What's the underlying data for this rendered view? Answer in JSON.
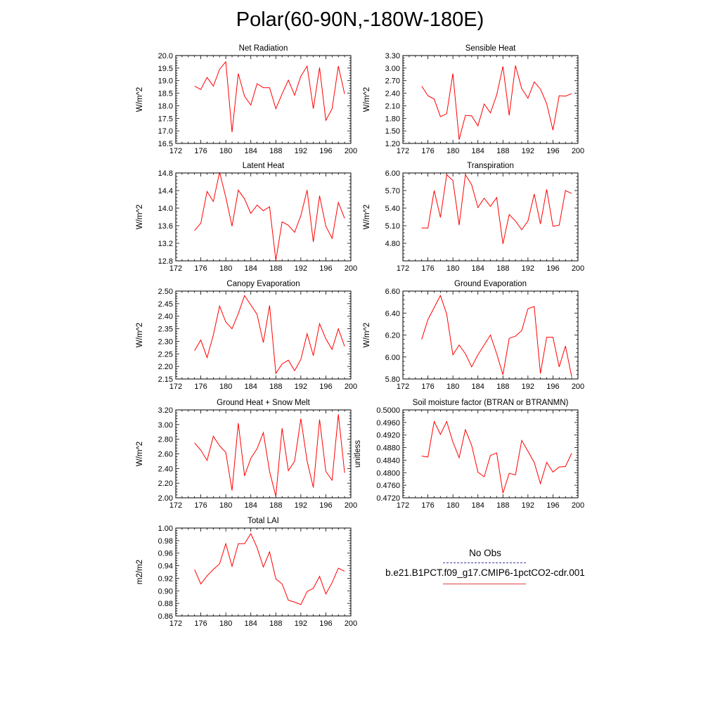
{
  "title": "Polar(60-90N,-180W-180E)",
  "legend": {
    "obs_label": "No Obs",
    "model_label": "b.e21.B1PCT.f09_g17.CMIP6-1pctCO2-cdr.001",
    "obs_color": "#3a3aa0",
    "model_color": "#ff0000"
  },
  "chart_data": [
    {
      "type": "line",
      "title": "Net Radiation",
      "ylabel": "W/m^2",
      "xlim": [
        172,
        200
      ],
      "xticks": [
        172,
        176,
        180,
        184,
        188,
        192,
        196,
        200
      ],
      "ylim": [
        16.5,
        20.0
      ],
      "yticks": [
        "16.5",
        "17.0",
        "17.5",
        "18.0",
        "18.5",
        "19.0",
        "19.5",
        "20.0"
      ],
      "x": [
        175,
        176,
        177,
        178,
        179,
        180,
        181,
        182,
        183,
        184,
        185,
        186,
        187,
        188,
        189,
        190,
        191,
        192,
        193,
        194,
        195,
        196,
        197,
        198,
        199
      ],
      "values": [
        18.78,
        18.65,
        19.13,
        18.78,
        19.45,
        19.75,
        16.95,
        19.28,
        18.38,
        18.03,
        18.88,
        18.72,
        18.72,
        17.88,
        18.47,
        19.02,
        18.42,
        19.18,
        19.58,
        17.88,
        19.52,
        17.42,
        17.88,
        19.58,
        18.47
      ]
    },
    {
      "type": "line",
      "title": "Sensible Heat",
      "ylabel": "W/m^2",
      "xlim": [
        172,
        200
      ],
      "xticks": [
        172,
        176,
        180,
        184,
        188,
        192,
        196,
        200
      ],
      "ylim": [
        1.2,
        3.3
      ],
      "yticks": [
        "1.20",
        "1.50",
        "1.80",
        "2.10",
        "2.40",
        "2.70",
        "3.00",
        "3.30"
      ],
      "x": [
        175,
        176,
        177,
        178,
        179,
        180,
        181,
        182,
        183,
        184,
        185,
        186,
        187,
        188,
        189,
        190,
        191,
        192,
        193,
        194,
        195,
        196,
        197,
        198,
        199
      ],
      "values": [
        2.57,
        2.34,
        2.26,
        1.84,
        1.91,
        2.87,
        1.29,
        1.87,
        1.86,
        1.62,
        2.14,
        1.93,
        2.36,
        3.04,
        1.87,
        3.06,
        2.51,
        2.28,
        2.67,
        2.5,
        2.15,
        1.52,
        2.34,
        2.33,
        2.39
      ]
    },
    {
      "type": "line",
      "title": "Latent Heat",
      "ylabel": "W/m^2",
      "xlim": [
        172,
        200
      ],
      "xticks": [
        172,
        176,
        180,
        184,
        188,
        192,
        196,
        200
      ],
      "ylim": [
        12.8,
        14.8
      ],
      "yticks": [
        "12.8",
        "13.2",
        "13.6",
        "14.0",
        "14.4",
        "14.8"
      ],
      "x": [
        175,
        176,
        177,
        178,
        179,
        180,
        181,
        182,
        183,
        184,
        185,
        186,
        187,
        188,
        189,
        190,
        191,
        192,
        193,
        194,
        195,
        196,
        197,
        198,
        199
      ],
      "values": [
        13.49,
        13.66,
        14.38,
        14.15,
        14.82,
        14.25,
        13.59,
        14.41,
        14.21,
        13.88,
        14.07,
        13.94,
        14.03,
        12.81,
        13.69,
        13.61,
        13.45,
        13.83,
        14.41,
        13.23,
        14.28,
        13.59,
        13.31,
        14.13,
        13.77
      ]
    },
    {
      "type": "line",
      "title": "Transpiration",
      "ylabel": "W/m^2",
      "xlim": [
        172,
        200
      ],
      "xticks": [
        172,
        176,
        180,
        184,
        188,
        192,
        196,
        200
      ],
      "ylim": [
        4.5,
        6.0
      ],
      "yticks": [
        "4.80",
        "5.10",
        "5.40",
        "5.70",
        "6.00"
      ],
      "x": [
        175,
        176,
        177,
        178,
        179,
        180,
        181,
        182,
        183,
        184,
        185,
        186,
        187,
        188,
        189,
        190,
        191,
        192,
        193,
        194,
        195,
        196,
        197,
        198,
        199
      ],
      "values": [
        5.06,
        5.06,
        5.7,
        5.24,
        5.97,
        5.87,
        5.11,
        5.97,
        5.8,
        5.41,
        5.57,
        5.43,
        5.58,
        4.79,
        5.29,
        5.18,
        5.03,
        5.18,
        5.64,
        5.13,
        5.72,
        5.09,
        5.11,
        5.7,
        5.65
      ]
    },
    {
      "type": "line",
      "title": "Canopy Evaporation",
      "ylabel": "W/m^2",
      "xlim": [
        172,
        200
      ],
      "xticks": [
        172,
        176,
        180,
        184,
        188,
        192,
        196,
        200
      ],
      "ylim": [
        2.15,
        2.5
      ],
      "yticks": [
        "2.15",
        "2.20",
        "2.25",
        "2.30",
        "2.35",
        "2.40",
        "2.45",
        "2.50"
      ],
      "x": [
        175,
        176,
        177,
        178,
        179,
        180,
        181,
        182,
        183,
        184,
        185,
        186,
        187,
        188,
        189,
        190,
        191,
        192,
        193,
        194,
        195,
        196,
        197,
        198,
        199
      ],
      "values": [
        2.263,
        2.305,
        2.235,
        2.325,
        2.44,
        2.377,
        2.35,
        2.41,
        2.482,
        2.445,
        2.407,
        2.295,
        2.443,
        2.172,
        2.21,
        2.225,
        2.183,
        2.228,
        2.33,
        2.243,
        2.37,
        2.31,
        2.268,
        2.35,
        2.28
      ]
    },
    {
      "type": "line",
      "title": "Ground Evaporation",
      "ylabel": "W/m^2",
      "xlim": [
        172,
        200
      ],
      "xticks": [
        172,
        176,
        180,
        184,
        188,
        192,
        196,
        200
      ],
      "ylim": [
        5.8,
        6.6
      ],
      "yticks": [
        "5.80",
        "6.00",
        "6.20",
        "6.40",
        "6.60"
      ],
      "x": [
        175,
        176,
        177,
        178,
        179,
        180,
        181,
        182,
        183,
        184,
        185,
        186,
        187,
        188,
        189,
        190,
        191,
        192,
        193,
        194,
        195,
        196,
        197,
        198,
        199
      ],
      "values": [
        6.16,
        6.34,
        6.45,
        6.56,
        6.39,
        6.02,
        6.11,
        6.03,
        5.91,
        6.02,
        6.11,
        6.2,
        6.03,
        5.84,
        6.17,
        6.19,
        6.24,
        6.44,
        6.46,
        5.85,
        6.18,
        6.18,
        5.91,
        6.1,
        5.82
      ]
    },
    {
      "type": "line",
      "title": "Ground Heat + Snow Melt",
      "ylabel": "W/m^2",
      "xlim": [
        172,
        200
      ],
      "xticks": [
        172,
        176,
        180,
        184,
        188,
        192,
        196,
        200
      ],
      "ylim": [
        2.0,
        3.2
      ],
      "yticks": [
        "2.00",
        "2.20",
        "2.40",
        "2.60",
        "2.80",
        "3.00",
        "3.20"
      ],
      "x": [
        175,
        176,
        177,
        178,
        179,
        180,
        181,
        182,
        183,
        184,
        185,
        186,
        187,
        188,
        189,
        190,
        191,
        192,
        193,
        194,
        195,
        196,
        197,
        198,
        199
      ],
      "values": [
        2.75,
        2.65,
        2.51,
        2.84,
        2.71,
        2.62,
        2.1,
        3.02,
        2.3,
        2.54,
        2.67,
        2.89,
        2.36,
        2.02,
        2.95,
        2.37,
        2.5,
        3.08,
        2.5,
        2.14,
        3.07,
        2.36,
        2.24,
        3.14,
        2.34
      ]
    },
    {
      "type": "line",
      "title": "Soil moisture factor (BTRAN or BTRANMN)",
      "ylabel": "unitless",
      "xlim": [
        172,
        200
      ],
      "xticks": [
        172,
        176,
        180,
        184,
        188,
        192,
        196,
        200
      ],
      "ylim": [
        0.472,
        0.5
      ],
      "yticks": [
        "0.4720",
        "0.4760",
        "0.4800",
        "0.4840",
        "0.4880",
        "0.4920",
        "0.4960",
        "0.5000"
      ],
      "x": [
        175,
        176,
        177,
        178,
        179,
        180,
        181,
        182,
        183,
        184,
        185,
        186,
        187,
        188,
        189,
        190,
        191,
        192,
        193,
        194,
        195,
        196,
        197,
        198,
        199
      ],
      "values": [
        0.4853,
        0.485,
        0.4963,
        0.4922,
        0.4963,
        0.4898,
        0.4848,
        0.4937,
        0.4887,
        0.4802,
        0.4787,
        0.4855,
        0.4863,
        0.4735,
        0.4798,
        0.4793,
        0.4903,
        0.4868,
        0.4833,
        0.4765,
        0.4833,
        0.4802,
        0.4818,
        0.482,
        0.4862
      ]
    },
    {
      "type": "line",
      "title": "Total LAI",
      "ylabel": "m2/m2",
      "xlim": [
        172,
        200
      ],
      "xticks": [
        172,
        176,
        180,
        184,
        188,
        192,
        196,
        200
      ],
      "ylim": [
        0.86,
        1.0
      ],
      "yticks": [
        "0.86",
        "0.88",
        "0.90",
        "0.92",
        "0.94",
        "0.96",
        "0.98",
        "1.00"
      ],
      "x": [
        175,
        176,
        177,
        178,
        179,
        180,
        181,
        182,
        183,
        184,
        185,
        186,
        187,
        188,
        189,
        190,
        191,
        192,
        193,
        194,
        195,
        196,
        197,
        198,
        199
      ],
      "values": [
        0.934,
        0.911,
        0.924,
        0.934,
        0.943,
        0.975,
        0.939,
        0.975,
        0.975,
        0.991,
        0.969,
        0.938,
        0.962,
        0.919,
        0.911,
        0.885,
        0.882,
        0.878,
        0.899,
        0.904,
        0.923,
        0.895,
        0.913,
        0.936,
        0.931
      ]
    }
  ]
}
